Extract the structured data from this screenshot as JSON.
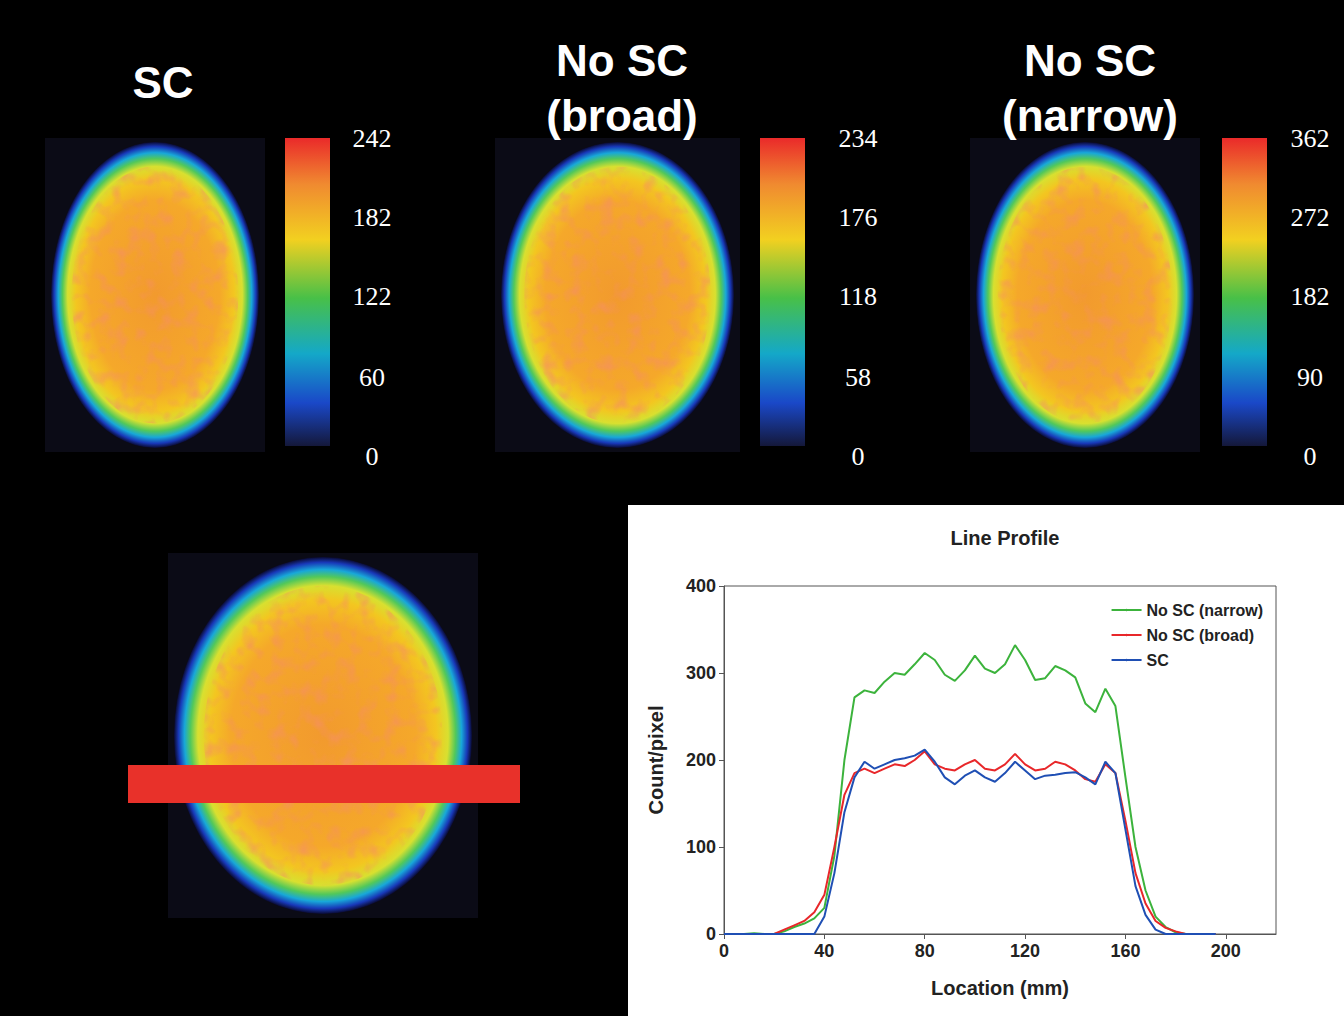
{
  "panels": [
    {
      "title": "SC",
      "colorbar_range": [
        0,
        242
      ],
      "colorbar_ticks": [
        0,
        60,
        122,
        182,
        242
      ]
    },
    {
      "title": "No SC (broad)",
      "colorbar_range": [
        0,
        234
      ],
      "colorbar_ticks": [
        0,
        58,
        118,
        176,
        234
      ]
    },
    {
      "title": "No SC (narrow)",
      "colorbar_range": [
        0,
        362
      ],
      "colorbar_ticks": [
        0,
        90,
        182,
        272,
        362
      ]
    }
  ],
  "chart_data": {
    "type": "line",
    "title": "Line Profile",
    "x_label": "Location (mm)",
    "y_label": "Count/pixel",
    "x": [
      0,
      4,
      8,
      12,
      16,
      20,
      24,
      28,
      32,
      36,
      40,
      44,
      48,
      52,
      56,
      60,
      64,
      68,
      72,
      76,
      80,
      84,
      88,
      92,
      96,
      100,
      104,
      108,
      112,
      116,
      120,
      124,
      128,
      132,
      136,
      140,
      144,
      148,
      152,
      156,
      160,
      164,
      168,
      172,
      176,
      180,
      184,
      188,
      192,
      196
    ],
    "series": [
      {
        "name": "No SC (narrow)",
        "color": "#3cb33c",
        "values": [
          0,
          0,
          0,
          1,
          0,
          0,
          3,
          8,
          12,
          18,
          30,
          90,
          200,
          272,
          280,
          277,
          290,
          300,
          298,
          310,
          323,
          315,
          298,
          291,
          303,
          320,
          305,
          300,
          310,
          332,
          315,
          292,
          294,
          308,
          303,
          295,
          265,
          255,
          282,
          262,
          180,
          100,
          50,
          20,
          8,
          2,
          0,
          0,
          0,
          0
        ]
      },
      {
        "name": "No SC (broad)",
        "color": "#e8272a",
        "values": [
          0,
          0,
          0,
          0,
          0,
          0,
          5,
          10,
          15,
          25,
          45,
          100,
          160,
          185,
          190,
          185,
          190,
          195,
          193,
          200,
          210,
          195,
          190,
          188,
          195,
          200,
          190,
          188,
          195,
          207,
          195,
          188,
          190,
          198,
          195,
          188,
          178,
          175,
          195,
          185,
          130,
          70,
          35,
          15,
          7,
          3,
          0,
          0,
          0,
          0
        ]
      },
      {
        "name": "SC",
        "color": "#1f4fb4",
        "values": [
          0,
          0,
          0,
          0,
          0,
          0,
          0,
          0,
          0,
          0,
          20,
          70,
          140,
          180,
          198,
          190,
          195,
          200,
          202,
          205,
          212,
          198,
          180,
          172,
          182,
          188,
          180,
          175,
          185,
          198,
          188,
          178,
          182,
          183,
          185,
          186,
          180,
          172,
          198,
          185,
          120,
          55,
          22,
          5,
          0,
          0,
          0,
          0,
          0,
          0
        ]
      }
    ],
    "xlim": [
      0,
      220
    ],
    "xticks": [
      0,
      40,
      80,
      120,
      160,
      200
    ],
    "ylim": [
      0,
      400
    ],
    "yticks": [
      0,
      100,
      200,
      300,
      400
    ],
    "grid": false,
    "legend": "upper right"
  }
}
